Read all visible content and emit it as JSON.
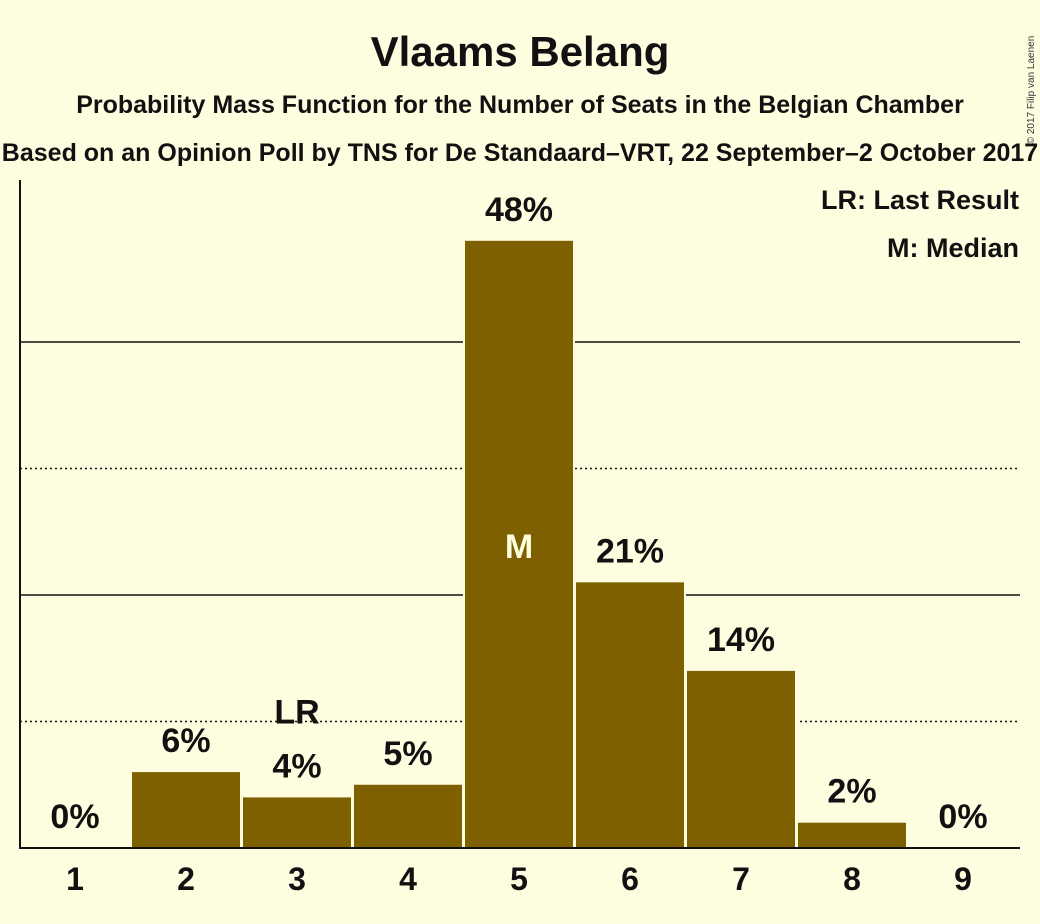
{
  "title": "Vlaams Belang",
  "subtitle": "Probability Mass Function for the Number of Seats in the Belgian Chamber",
  "subtitle2": "Based on an Opinion Poll by TNS for De Standaard–VRT, 22 September–2 October 2017",
  "copyright": "© 2017 Filip van Laenen",
  "legend": {
    "last_result": "LR: Last Result",
    "median": "M: Median"
  },
  "colors": {
    "bar": "#7f6000",
    "background": "#fffde0"
  },
  "chart_data": {
    "type": "bar",
    "categories": [
      "1",
      "2",
      "3",
      "4",
      "5",
      "6",
      "7",
      "8",
      "9"
    ],
    "values": [
      0,
      6,
      4,
      5,
      48,
      21,
      14,
      2,
      0
    ],
    "labels": [
      "0%",
      "6%",
      "4%",
      "5%",
      "48%",
      "21%",
      "14%",
      "2%",
      "0%"
    ],
    "ylim": [
      0,
      50
    ],
    "gridlines_solid": [
      20,
      40
    ],
    "gridlines_dotted": [
      10,
      30
    ],
    "last_result": {
      "category": "3",
      "label": "LR"
    },
    "median": {
      "category": "5",
      "label": "M"
    },
    "grid": true
  }
}
